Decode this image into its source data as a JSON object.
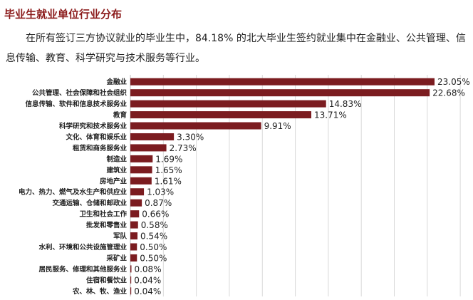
{
  "title": "毕业生就业单位行业分布",
  "paragraph": "在所有签订三方协议就业的毕业生中，84.18% 的北大毕业生签约就业集中在金融业、公共管理、信息传输、教育、科学研究与技术服务等行业。",
  "colors": {
    "title": "#8b1a1a",
    "bar": "#7b1c20",
    "grid": "#d9d9d9",
    "text": "#222222"
  },
  "chart_data": {
    "type": "bar",
    "orientation": "horizontal",
    "value_unit": "%",
    "grid": true,
    "categories": [
      "金融业",
      "公共管理、社会保障和社会组织",
      "信息传输、软件和信息技术服务业",
      "教育",
      "科学研究和技术服务业",
      "文化、体育和娱乐业",
      "租赁和商务服务业",
      "制造业",
      "建筑业",
      "房地产业",
      "电力、热力、燃气及水生产和供应业",
      "交通运输、仓储和邮政业",
      "卫生和社会工作",
      "批发和零售业",
      "军队",
      "水利、环境和公共设施管理业",
      "采矿业",
      "居民服务、修理和其他服务业",
      "住宿和餐饮业",
      "农、林、牧、渔业"
    ],
    "values": [
      23.05,
      22.68,
      14.83,
      13.71,
      9.91,
      3.3,
      2.73,
      1.69,
      1.65,
      1.61,
      1.03,
      0.87,
      0.66,
      0.58,
      0.54,
      0.5,
      0.5,
      0.08,
      0.04,
      0.04
    ],
    "labels": [
      "23.05%",
      "22.68%",
      "14.83%",
      "13.71%",
      "9.91%",
      "3.30%",
      "2.73%",
      "1.69%",
      "1.65%",
      "1.61%",
      "1.03%",
      "0.87%",
      "0.66%",
      "0.58%",
      "0.54%",
      "0.50%",
      "0.50%",
      "0.08%",
      "0.04%",
      "0.04%"
    ],
    "xlim": [
      0,
      25
    ]
  }
}
